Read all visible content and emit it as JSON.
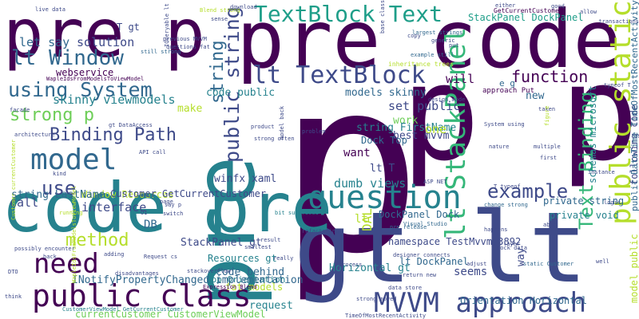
{
  "palette": {
    "deep_purple": "#440154",
    "indigo": "#3e4a89",
    "slate_blue": "#31688e",
    "teal": "#26828e",
    "sea_green": "#1f9e89",
    "green": "#35b779",
    "lime": "#6ece58",
    "yellow_green": "#b5de2b",
    "yellow": "#fde725",
    "background": "#ffffff"
  },
  "words": [
    {
      "text": "p",
      "color": "#440154"
    },
    {
      "text": "pre code",
      "color": "#440154"
    },
    {
      "text": "gt lt",
      "color": "#3e4a89"
    },
    {
      "text": "code pre",
      "color": "#26828e"
    },
    {
      "text": "pre p",
      "color": "#440154"
    },
    {
      "text": "pre",
      "color": "#26828e"
    },
    {
      "text": "p p",
      "color": "#440154"
    },
    {
      "text": "TextBlock Text",
      "color": "#1f9e89"
    },
    {
      "text": "lt Window",
      "color": "#31688e"
    },
    {
      "text": "lt TextBlock",
      "color": "#3e4a89"
    },
    {
      "text": "using System",
      "color": "#31688e"
    },
    {
      "text": "function",
      "color": "#440154"
    },
    {
      "text": "strong p",
      "color": "#6ece58"
    },
    {
      "text": "Binding Path",
      "color": "#3e4a89"
    },
    {
      "text": "model",
      "color": "#31688e"
    },
    {
      "text": "question",
      "color": "#26828e"
    },
    {
      "text": "example",
      "color": "#3e4a89"
    },
    {
      "text": "public static",
      "color": "#b5de2b"
    },
    {
      "text": "lt StackPanel",
      "color": "#35b779"
    },
    {
      "text": "public string",
      "color": "#3e4a89"
    },
    {
      "text": "Text Binding",
      "color": "#35b779"
    },
    {
      "text": "need",
      "color": "#440154"
    },
    {
      "text": "use",
      "color": "#3e4a89"
    },
    {
      "text": "public class",
      "color": "#440154"
    },
    {
      "text": "MVVM approach",
      "color": "#3e4a89"
    },
    {
      "text": "method",
      "color": "#b5de2b"
    },
    {
      "text": "string",
      "color": "#31688e"
    },
    {
      "text": "webservice",
      "color": "#440154"
    },
    {
      "text": "T gt",
      "color": "#3e4a89"
    },
    {
      "text": "let say",
      "color": "#31688e"
    },
    {
      "text": "solution",
      "color": "#3e4a89"
    },
    {
      "text": "skinny viewmodels",
      "color": "#26828e"
    },
    {
      "text": "code public",
      "color": "#26828e"
    },
    {
      "text": "models skinny",
      "color": "#31688e"
    },
    {
      "text": "set public",
      "color": "#3e4a89"
    },
    {
      "text": "will",
      "color": "#440154"
    },
    {
      "text": "work",
      "color": "#6ece58"
    },
    {
      "text": "best mvvm",
      "color": "#3e4a89"
    },
    {
      "text": "want",
      "color": "#440154"
    },
    {
      "text": "lt T",
      "color": "#3e4a89"
    },
    {
      "text": "string FirstName",
      "color": "#26828e"
    },
    {
      "text": "Dock Top",
      "color": "#31688e"
    },
    {
      "text": "one",
      "color": "#b5de2b"
    },
    {
      "text": "make",
      "color": "#b5de2b"
    },
    {
      "text": "Window Resources",
      "color": "#b5de2b"
    },
    {
      "text": "interface",
      "color": "#3e4a89"
    },
    {
      "text": "Customer GetCurrentCustomer",
      "color": "#3e4a89"
    },
    {
      "text": "dumb views",
      "color": "#26828e"
    },
    {
      "text": "call",
      "color": "#3e4a89"
    },
    {
      "text": "string LastName",
      "color": "#31688e"
    },
    {
      "text": "winfx xaml",
      "color": "#3e4a89"
    },
    {
      "text": "DB",
      "color": "#31688e"
    },
    {
      "text": "StackPanel gt",
      "color": "#3e4a89"
    },
    {
      "text": "Resources gt",
      "color": "#26828e"
    },
    {
      "text": "code behind",
      "color": "#31688e"
    },
    {
      "text": "Top Orientation",
      "color": "#26828e"
    },
    {
      "text": "fat models",
      "color": "#b5de2b"
    },
    {
      "text": "request",
      "color": "#26828e"
    },
    {
      "text": "INotifyPropertyChanged implementation",
      "color": "#31688e"
    },
    {
      "text": "currentCustomer CustomerViewModel",
      "color": "#6ece58"
    },
    {
      "text": "namespace TestMvvm73892",
      "color": "#3e4a89"
    },
    {
      "text": "lt DockPanel",
      "color": "#31688e"
    },
    {
      "text": "DockPanel Dock",
      "color": "#31688e"
    },
    {
      "text": "Horizontal gt",
      "color": "#26828e"
    },
    {
      "text": "seems",
      "color": "#3e4a89"
    },
    {
      "text": "way",
      "color": "#3e4a89"
    },
    {
      "text": "new",
      "color": "#31688e"
    },
    {
      "text": "e g",
      "color": "#31688e"
    },
    {
      "text": "schemas microsoft",
      "color": "#26828e"
    },
    {
      "text": "private string",
      "color": "#31688e"
    },
    {
      "text": "private void",
      "color": "#26828e"
    },
    {
      "text": "following code",
      "color": "#3e4a89"
    },
    {
      "text": "public DateTime TimeOfMostRecentActivity",
      "color": "#31688e"
    },
    {
      "text": "model public",
      "color": "#b5de2b"
    },
    {
      "text": "StackPanel DockPanel",
      "color": "#1f9e89"
    },
    {
      "text": "Orientation Horizontal",
      "color": "#31688e"
    },
    {
      "text": "DAL",
      "color": "#b5de2b"
    },
    {
      "text": "lt",
      "color": "#b5de2b"
    },
    {
      "text": "approach Put",
      "color": "#440154"
    },
    {
      "text": "largest strings",
      "color": "#31688e"
    },
    {
      "text": "inheritance trees",
      "color": "#b5de2b"
    },
    {
      "text": "example still",
      "color": "#31688e"
    },
    {
      "text": "GetCurrentCustomer",
      "color": "#440154"
    },
    {
      "text": "allow",
      "color": "#3e4a89"
    },
    {
      "text": "Blend strong",
      "color": "#b5de2b"
    },
    {
      "text": "download",
      "color": "#3e4a89"
    },
    {
      "text": "questions fat",
      "color": "#3e4a89"
    },
    {
      "text": "previous MVVM",
      "color": "#3e4a89"
    },
    {
      "text": "IQueryable lt",
      "color": "#3e4a89"
    },
    {
      "text": "still strong",
      "color": "#31688e"
    },
    {
      "text": "WapleIdsFromModelsToViewModel",
      "color": "#440154"
    },
    {
      "text": "CustomerViewModel GetCurrentCustomer",
      "color": "#26828e"
    },
    {
      "text": "WapleIdsFromModelsToViewModel",
      "color": "#b5de2b"
    },
    {
      "text": "Visual Studio",
      "color": "#31688e"
    },
    {
      "text": "pre release",
      "color": "#31688e"
    },
    {
      "text": "designer connects",
      "color": "#3e4a89"
    },
    {
      "text": "refactoring",
      "color": "#3e4a89"
    },
    {
      "text": "System using",
      "color": "#3e4a89"
    },
    {
      "text": "change strong",
      "color": "#31688e"
    },
    {
      "text": "static Customer",
      "color": "#31688e"
    },
    {
      "text": "Expression Blend",
      "color": "#440154"
    },
    {
      "text": "bit surprised",
      "color": "#26828e"
    },
    {
      "text": "possibly encounter",
      "color": "#3e4a89"
    },
    {
      "text": "Customer currentCustomer",
      "color": "#b5de2b"
    },
    {
      "text": "return new",
      "color": "#3e4a89"
    },
    {
      "text": "data store",
      "color": "#3e4a89"
    },
    {
      "text": "mock data",
      "color": "#3e4a89"
    },
    {
      "text": "TimeOfMostRecentActivity",
      "color": "#3e4a89"
    },
    {
      "text": "strong moved",
      "color": "#3e4a89"
    },
    {
      "text": "stackoverflow",
      "color": "#3e4a89"
    },
    {
      "text": "disadvantages",
      "color": "#3e4a89"
    },
    {
      "text": "smallest",
      "color": "#3e4a89"
    },
    {
      "text": "process",
      "color": "#3e4a89"
    },
    {
      "text": "layer",
      "color": "#3e4a89"
    },
    {
      "text": "nature",
      "color": "#3e4a89"
    },
    {
      "text": "multiple",
      "color": "#3e4a89"
    },
    {
      "text": "happens",
      "color": "#3e4a89"
    },
    {
      "text": "able",
      "color": "#3e4a89"
    },
    {
      "text": "adjust",
      "color": "#3e4a89"
    },
    {
      "text": "facade",
      "color": "#3e4a89"
    },
    {
      "text": "kind",
      "color": "#3e4a89"
    },
    {
      "text": "think",
      "color": "#3e4a89"
    },
    {
      "text": "running",
      "color": "#b5de2b"
    },
    {
      "text": "result",
      "color": "#3e4a89"
    },
    {
      "text": "really",
      "color": "#3e4a89"
    },
    {
      "text": "taken",
      "color": "#3e4a89"
    },
    {
      "text": "copy",
      "color": "#3e4a89"
    },
    {
      "text": "good",
      "color": "#3e4a89"
    },
    {
      "text": "either",
      "color": "#3e4a89"
    },
    {
      "text": "put",
      "color": "#3e4a89"
    },
    {
      "text": "transactions",
      "color": "#3e4a89"
    },
    {
      "text": "generic",
      "color": "#3e4a89"
    },
    {
      "text": "sense",
      "color": "#3e4a89"
    },
    {
      "text": "design mode",
      "color": "#3e4a89"
    },
    {
      "text": "product",
      "color": "#3e4a89"
    },
    {
      "text": "strong often",
      "color": "#3e4a89"
    },
    {
      "text": "ASP NET",
      "color": "#3e4a89"
    },
    {
      "text": "API call",
      "color": "#3e4a89"
    },
    {
      "text": "gt DataAccess",
      "color": "#3e4a89"
    },
    {
      "text": "architecture",
      "color": "#3e4a89"
    },
    {
      "text": "typeof T",
      "color": "#3e4a89"
    },
    {
      "text": "figure",
      "color": "#b5de2b"
    },
    {
      "text": "well",
      "color": "#3e4a89"
    },
    {
      "text": "say p",
      "color": "#3e4a89"
    },
    {
      "text": "switch",
      "color": "#3e4a89"
    },
    {
      "text": "adding",
      "color": "#3e4a89"
    },
    {
      "text": "back",
      "color": "#3e4a89"
    },
    {
      "text": "Request cs",
      "color": "#3e4a89"
    },
    {
      "text": "live data",
      "color": "#3e4a89"
    },
    {
      "text": "base class",
      "color": "#3e4a89"
    },
    {
      "text": "problem",
      "color": "#3e4a89"
    },
    {
      "text": "model back",
      "color": "#3e4a89"
    },
    {
      "text": "T typeof",
      "color": "#3e4a89"
    },
    {
      "text": "first",
      "color": "#3e4a89"
    },
    {
      "text": "logic",
      "color": "#3e4a89"
    },
    {
      "text": "instance",
      "color": "#3e4a89"
    },
    {
      "text": "DTO",
      "color": "#3e4a89"
    },
    {
      "text": "page",
      "color": "#3e4a89"
    },
    {
      "text": "UI",
      "color": "#3e4a89"
    }
  ]
}
